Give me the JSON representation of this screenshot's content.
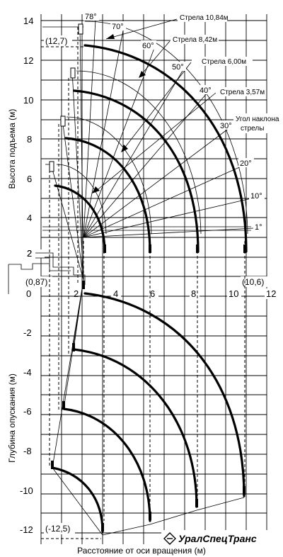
{
  "y_axis_top_label": "Высота подъема (м)",
  "y_axis_bottom_label": "Глубина опускания (м)",
  "x_axis_label": "Расстояние от оси вращения (м)",
  "x_ticks": [
    "0",
    "2",
    "4",
    "6",
    "8",
    "10",
    "12"
  ],
  "y_ticks_top": [
    "14",
    "12",
    "10",
    "8",
    "6",
    "4",
    "2"
  ],
  "y_ticks_bottom": [
    "-2",
    "-4",
    "-6",
    "-8",
    "-10",
    "-12"
  ],
  "angles": [
    "78°",
    "70°",
    "60°",
    "50°",
    "40°",
    "30°",
    "20°",
    "10°",
    "1°"
  ],
  "booms": [
    "Стрела 10,84м",
    "Стрела 8,42м",
    "Стрела 6,00м",
    "Стрела 3,57м"
  ],
  "incline_label_1": "Угол наклона",
  "incline_label_2": "стрелы",
  "annot_top": "(12,7)",
  "annot_left": "(0,87)",
  "annot_right": "(10,6)",
  "annot_bottom": "(-12,5)",
  "logo_text": "УралСпецТранс"
}
